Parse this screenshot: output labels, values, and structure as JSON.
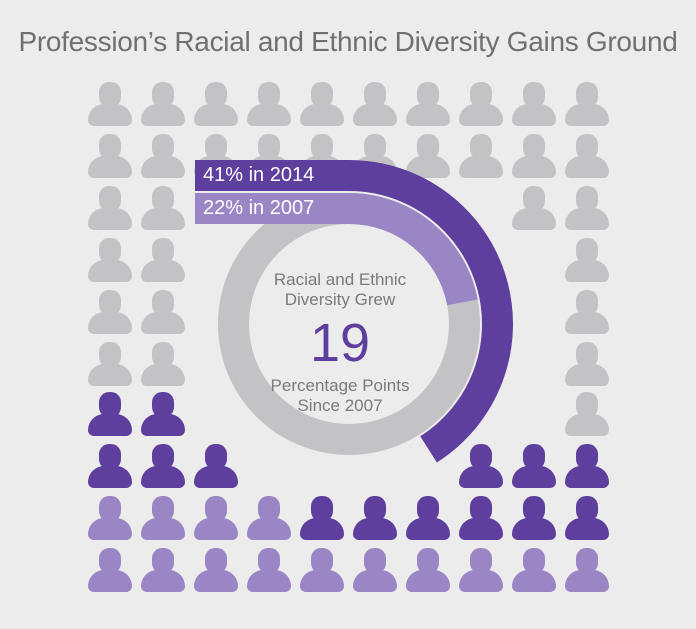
{
  "title": "Profession’s Racial and Ethnic Diversity Gains Ground",
  "center": {
    "line1": "Racial and Ethnic",
    "line2": "Diversity Grew",
    "number": "19",
    "line3": "Percentage Points",
    "line4": "Since 2007"
  },
  "colors": {
    "grey": "#c3c3c5",
    "dark_purple": "#5e3f9e",
    "light_purple": "#9a86c4",
    "ring_track": "#c3c3c5",
    "background": "#ececec"
  },
  "chart_data": {
    "type": "pie",
    "title": "Profession’s Racial and Ethnic Diversity Gains Ground",
    "series": [
      {
        "label": "41% in 2014",
        "year": 2014,
        "value": 41,
        "color": "#5e3f9e"
      },
      {
        "label": "22% in 2007",
        "year": 2007,
        "value": 22,
        "color": "#9a86c4"
      }
    ],
    "difference_points": 19,
    "icon_grid": {
      "rows": 10,
      "cols": 10,
      "light_purple_count": 22,
      "dark_purple_count": 19,
      "grey_count": 59
    }
  }
}
